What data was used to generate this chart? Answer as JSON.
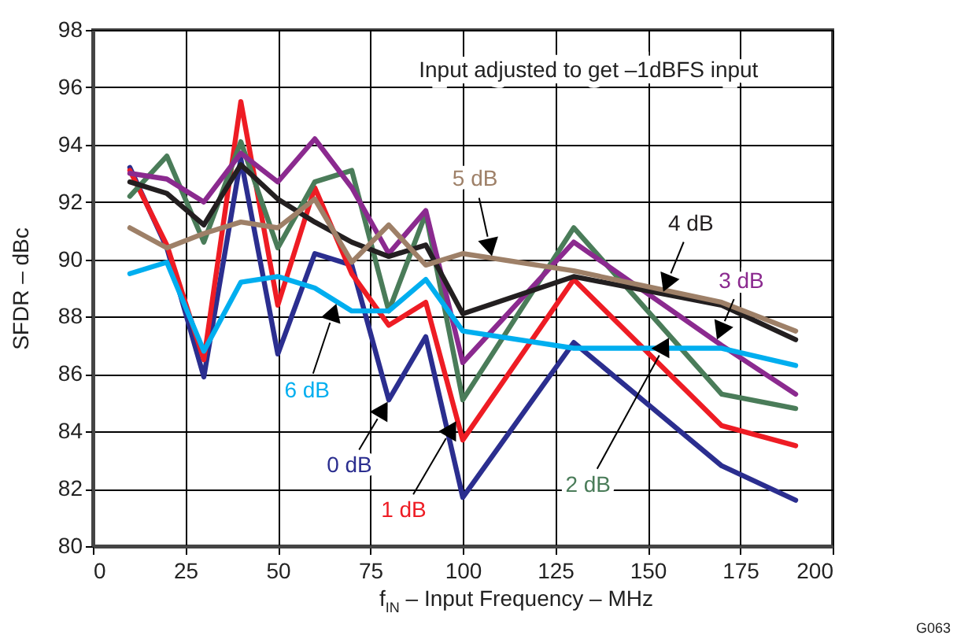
{
  "chart_data": {
    "type": "line",
    "xlabel": "f$_{IN}$ – Input Frequency – MHz",
    "ylabel": "SFDR – dBc",
    "x": [
      10,
      20,
      30,
      40,
      50,
      60,
      70,
      80,
      90,
      100,
      130,
      170,
      190
    ],
    "series": [
      {
        "name": "0 dB",
        "color": "#2b2e8f",
        "values": [
          93.2,
          90.4,
          85.9,
          93.5,
          86.7,
          90.2,
          89.8,
          85.1,
          87.3,
          81.7,
          87.1,
          82.8,
          81.6
        ]
      },
      {
        "name": "1 dB",
        "color": "#ee1c24",
        "values": [
          93.1,
          90.5,
          86.5,
          95.5,
          88.4,
          92.5,
          89.5,
          87.7,
          88.5,
          83.7,
          89.3,
          84.2,
          83.5
        ]
      },
      {
        "name": "2 dB",
        "color": "#4a7c59",
        "values": [
          92.2,
          93.6,
          90.6,
          94.1,
          90.4,
          92.7,
          93.1,
          88.2,
          91.6,
          85.1,
          91.1,
          85.3,
          84.8
        ]
      },
      {
        "name": "3 dB",
        "color": "#8b2a8f",
        "values": [
          93.0,
          92.8,
          92.0,
          93.7,
          92.7,
          94.2,
          92.5,
          90.2,
          91.7,
          86.4,
          90.6,
          87.0,
          85.3
        ]
      },
      {
        "name": "4 dB",
        "color": "#231f20",
        "values": [
          92.7,
          92.3,
          91.2,
          93.3,
          92.1,
          91.3,
          90.6,
          90.1,
          90.5,
          88.1,
          89.4,
          88.4,
          87.2
        ]
      },
      {
        "name": "5 dB",
        "color": "#9e8068",
        "values": [
          91.1,
          90.4,
          90.9,
          91.3,
          91.1,
          92.1,
          89.9,
          91.2,
          89.8,
          90.2,
          89.6,
          88.5,
          87.5
        ]
      },
      {
        "name": "6 dB",
        "color": "#00aeef",
        "values": [
          89.5,
          89.9,
          86.8,
          89.2,
          89.4,
          89.0,
          88.2,
          88.2,
          89.3,
          87.5,
          86.9,
          86.9,
          86.3
        ]
      }
    ],
    "xlim": [
      0,
      200
    ],
    "xticks": [
      0,
      25,
      50,
      75,
      100,
      125,
      150,
      175,
      200
    ],
    "ylim": [
      80,
      98
    ],
    "yticks": [
      80,
      82,
      84,
      86,
      88,
      90,
      92,
      94,
      96,
      98
    ],
    "grid": true,
    "annotations": [
      "Input adjusted to get –1dBFS input",
      "G063"
    ]
  }
}
